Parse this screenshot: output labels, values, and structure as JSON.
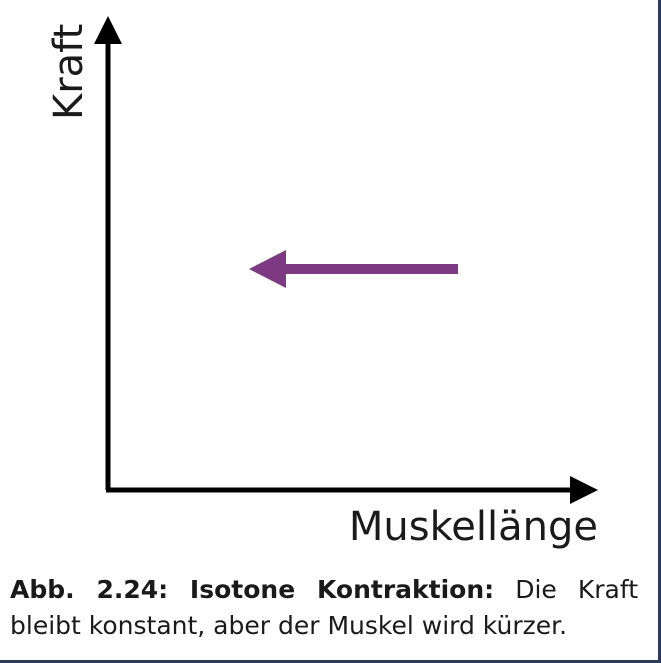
{
  "diagram": {
    "y_axis_label": "Kraft",
    "x_axis_label": "Muskellänge",
    "arrow_color": "#7d3a82",
    "axis_color": "#000000"
  },
  "caption": {
    "label_bold": "Abb. 2.24: Isotone Kontraktion:",
    "text": "Die Kraft bleibt konstant, aber der Muskel wird kürzer."
  },
  "colors": {
    "frame_border": "#2e3a5c",
    "background": "#ffffff"
  }
}
